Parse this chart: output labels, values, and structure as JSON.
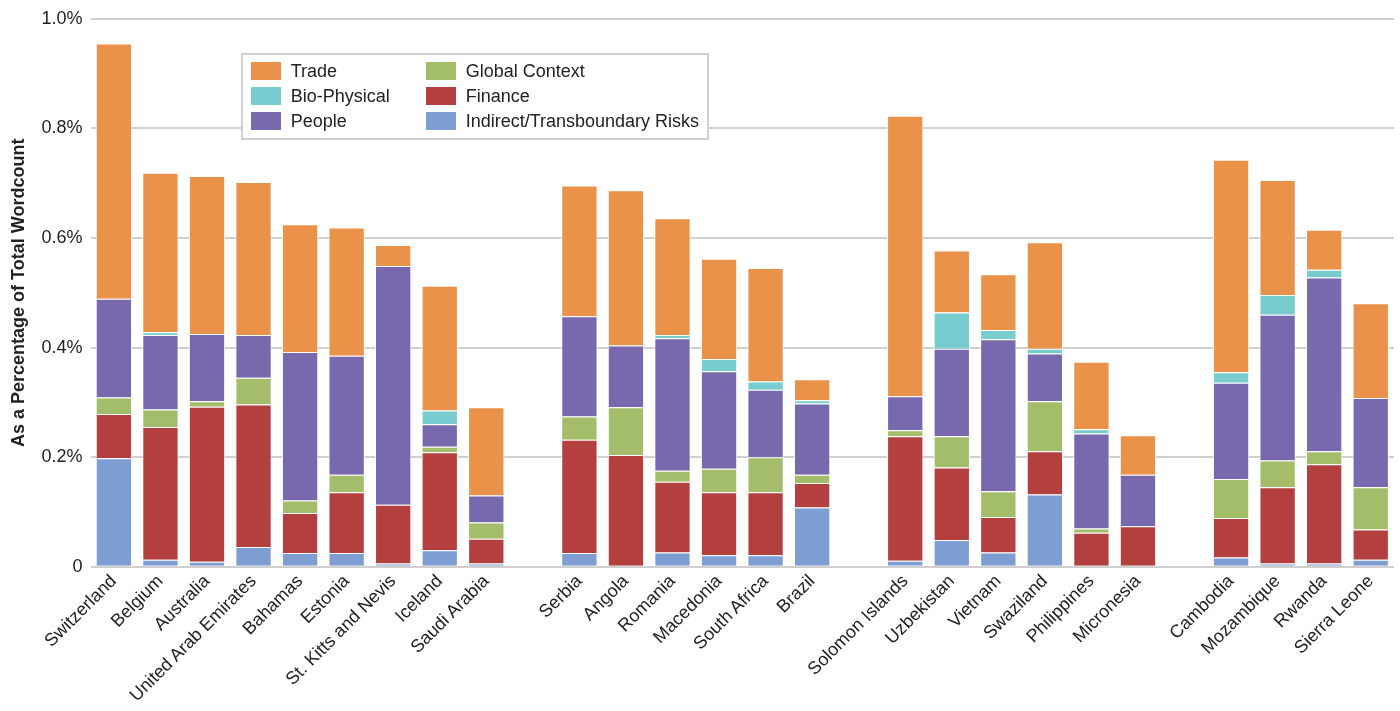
{
  "chart_data": {
    "type": "bar",
    "stacked": true,
    "ylabel": "As a Percentage of Total Wordcount",
    "categories": [
      "Switzerland",
      "Belgium",
      "Australia",
      "United Arab Emirates",
      "Bahamas",
      "Estonia",
      "St. Kitts and Nevis",
      "Iceland",
      "Saudi Arabia",
      null,
      "Serbia",
      "Angola",
      "Romania",
      "Macedonia",
      "South Africa",
      "Brazil",
      null,
      "Solomon Islands",
      "Uzbekistan",
      "Vietnam",
      "Swaziland",
      "Philippines",
      "Micronesia",
      null,
      "Cambodia",
      "Mozambique",
      "Rwanda",
      "Sierra Leone"
    ],
    "series": [
      {
        "name": "Indirect/Transboundary Risks",
        "color": "#7e9dd3",
        "values": [
          0.198,
          0.013,
          0.009,
          0.036,
          0.025,
          0.025,
          0.006,
          0.03,
          0.006,
          null,
          0.025,
          0,
          0.026,
          0.021,
          0.021,
          0.108,
          null,
          0.011,
          0.049,
          0.026,
          0.132,
          0,
          0,
          null,
          0.017,
          0.006,
          0.006,
          0.013
        ]
      },
      {
        "name": "Finance",
        "color": "#b33f3e",
        "values": [
          0.081,
          0.242,
          0.283,
          0.26,
          0.073,
          0.111,
          0.107,
          0.179,
          0.045,
          null,
          0.207,
          0.204,
          0.129,
          0.115,
          0.115,
          0.045,
          null,
          0.227,
          0.132,
          0.065,
          0.079,
          0.062,
          0.074,
          null,
          0.072,
          0.139,
          0.181,
          0.055
        ]
      },
      {
        "name": "Global Context",
        "color": "#a4bd6a",
        "values": [
          0.03,
          0.032,
          0.01,
          0.049,
          0.023,
          0.032,
          0,
          0.01,
          0.03,
          null,
          0.042,
          0.087,
          0.02,
          0.043,
          0.064,
          0.015,
          null,
          0.011,
          0.057,
          0.047,
          0.091,
          0.008,
          0,
          null,
          0.071,
          0.049,
          0.024,
          0.077
        ]
      },
      {
        "name": "People",
        "color": "#7868ad",
        "values": [
          0.18,
          0.136,
          0.123,
          0.078,
          0.271,
          0.217,
          0.436,
          0.041,
          0.049,
          null,
          0.183,
          0.113,
          0.242,
          0.178,
          0.123,
          0.13,
          null,
          0.062,
          0.16,
          0.277,
          0.087,
          0.173,
          0.094,
          null,
          0.176,
          0.266,
          0.317,
          0.163
        ]
      },
      {
        "name": "Bio-Physical",
        "color": "#78cccd",
        "values": [
          0,
          0.005,
          0,
          0,
          0,
          0,
          0,
          0.025,
          0,
          null,
          0,
          0,
          0.006,
          0.022,
          0.015,
          0.006,
          null,
          0,
          0.066,
          0.017,
          0.009,
          0.008,
          0,
          null,
          0.019,
          0.036,
          0.014,
          0
        ]
      },
      {
        "name": "Trade",
        "color": "#eb924a",
        "values": [
          0.466,
          0.291,
          0.288,
          0.279,
          0.233,
          0.234,
          0.038,
          0.228,
          0.161,
          null,
          0.239,
          0.283,
          0.213,
          0.183,
          0.207,
          0.038,
          null,
          0.512,
          0.113,
          0.102,
          0.194,
          0.123,
          0.072,
          null,
          0.388,
          0.21,
          0.073,
          0.173
        ]
      }
    ],
    "ylim": [
      0,
      1
    ],
    "yticks": [
      {
        "value": 0,
        "label": "0"
      },
      {
        "value": 0.2,
        "label": "0.2%"
      },
      {
        "value": 0.4,
        "label": "0.4%"
      },
      {
        "value": 0.6,
        "label": "0.6%"
      },
      {
        "value": 0.8,
        "label": "0.8%"
      },
      {
        "value": 1,
        "label": "1.0%"
      }
    ],
    "grid": "y",
    "legend": "top left"
  }
}
